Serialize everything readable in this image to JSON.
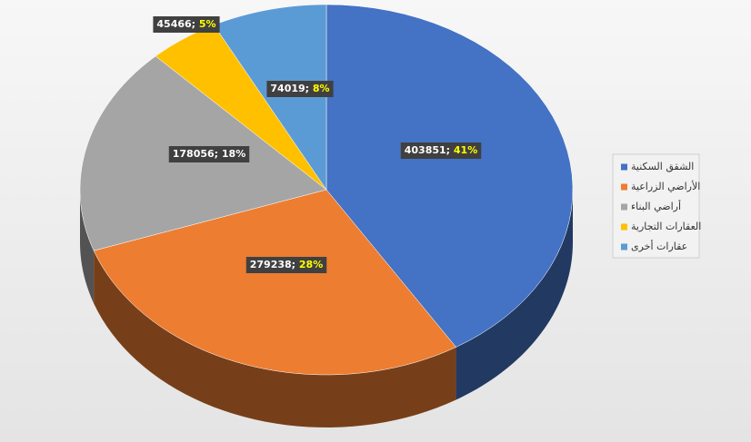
{
  "chart_data": {
    "type": "pie3d",
    "categories": [
      "الشقق السكنية",
      "الأراضي الزراعية",
      "أراضي البناء",
      "العقارات التجارية",
      "عقارات أخرى"
    ],
    "values": [
      403851,
      279238,
      178056,
      45466,
      74019
    ],
    "value_labels": [
      "403851; 41%",
      "279238; 28%",
      "178056; 18%",
      "45466; 5%",
      "74019; 8%"
    ],
    "colors": [
      "#4472c4",
      "#ed7d31",
      "#a5a5a5",
      "#ffc000",
      "#5b9bd5"
    ],
    "label_highlight": [
      "#ffff00",
      "#ffff00",
      "#ffffff",
      "#ffff00",
      "#ffff00"
    ],
    "legend": "right"
  }
}
